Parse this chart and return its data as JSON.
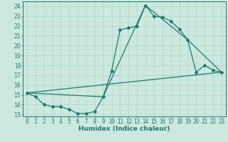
{
  "title": "",
  "xlabel": "Humidex (Indice chaleur)",
  "ylabel": "",
  "bg_color": "#cde8df",
  "grid_color": "#b0d8cc",
  "line_color": "#1a7a6e",
  "xlim": [
    -0.5,
    23.5
  ],
  "ylim": [
    12.8,
    24.5
  ],
  "yticks": [
    13,
    14,
    15,
    16,
    17,
    18,
    19,
    20,
    21,
    22,
    23,
    24
  ],
  "xticks": [
    0,
    1,
    2,
    3,
    4,
    5,
    6,
    7,
    8,
    9,
    10,
    11,
    12,
    13,
    14,
    15,
    16,
    17,
    18,
    19,
    20,
    21,
    22,
    23
  ],
  "series_main": {
    "x": [
      0,
      1,
      2,
      3,
      4,
      5,
      6,
      7,
      8,
      9,
      10,
      11,
      12,
      13,
      14,
      15,
      16,
      17,
      18,
      19,
      20,
      21,
      22,
      23
    ],
    "y": [
      15.2,
      14.8,
      14.0,
      13.8,
      13.8,
      13.5,
      13.1,
      13.1,
      13.3,
      14.8,
      17.4,
      21.6,
      21.8,
      22.0,
      24.1,
      23.0,
      22.9,
      22.5,
      21.7,
      20.6,
      17.3,
      18.0,
      17.5,
      17.3
    ]
  },
  "series_line1": {
    "x": [
      0,
      23
    ],
    "y": [
      15.2,
      17.3
    ]
  },
  "series_line2": {
    "x": [
      0,
      9,
      14,
      19,
      23
    ],
    "y": [
      15.2,
      14.8,
      24.1,
      20.6,
      17.3
    ]
  },
  "tick_fontsize": 5.5,
  "xlabel_fontsize": 6.5
}
